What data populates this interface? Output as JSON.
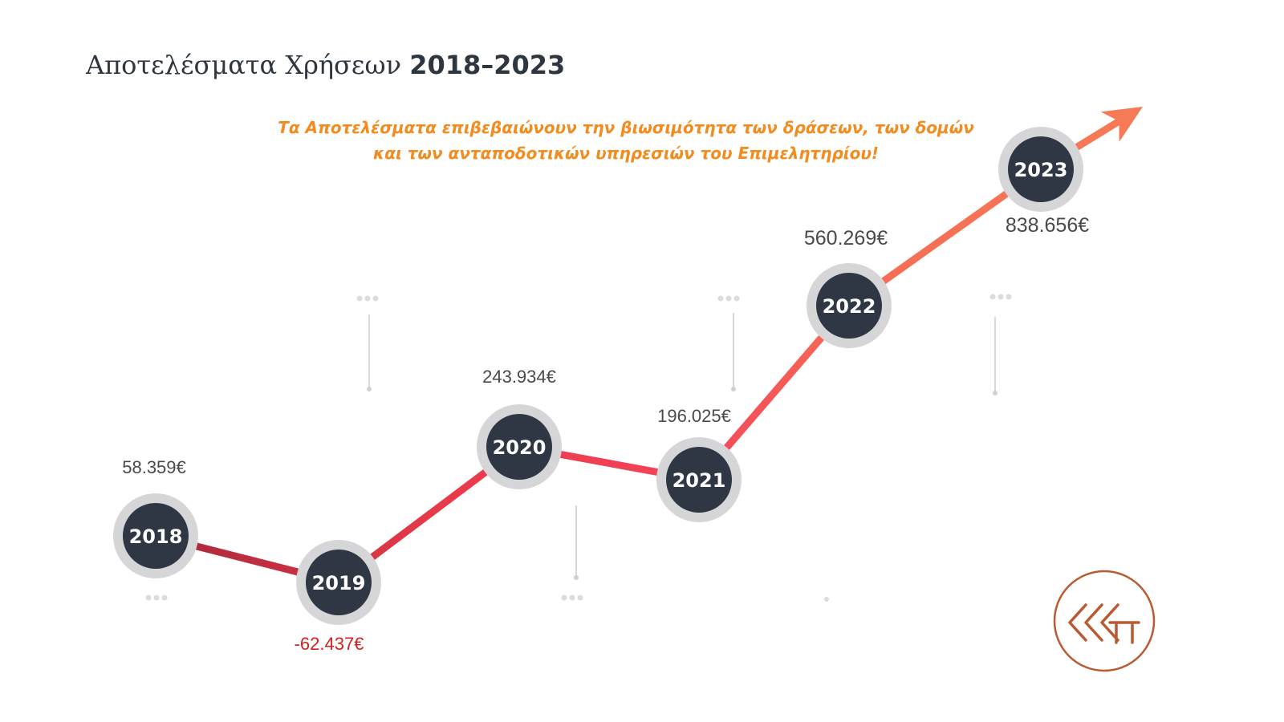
{
  "title": {
    "text": "Αποτελέσματα Χρήσεων",
    "years": "2018–2023"
  },
  "subtitle": {
    "line1": "Τα Αποτελέσματα επιβεβαιώνουν την βιωσιμότητα των δράσεων, των δομών",
    "line2": "και των ανταποδοτικών υπηρεσιών του  Επιμελητηρίου!"
  },
  "chart_data": {
    "type": "line",
    "x": [
      "2018",
      "2019",
      "2020",
      "2021",
      "2022",
      "2023"
    ],
    "value_labels": [
      "58.359€",
      "-62.437€",
      "243.934€",
      "196.025€",
      "560.269€",
      "838.656€"
    ],
    "values": [
      58359,
      -62437,
      243934,
      196025,
      560269,
      838656
    ],
    "colors": {
      "marker_fill": "#2f3744",
      "marker_ring": "#d6d6d8",
      "negative_label": "#d81e1e",
      "line_start": "#a8273a",
      "line_mid": "#f4435a",
      "line_end": "#f67a55",
      "subtitle": "#f28c1e",
      "logo": "#b95a33"
    },
    "trend_arrow": "up-right"
  },
  "logo": {
    "icon": "chamber-logo-icon"
  }
}
